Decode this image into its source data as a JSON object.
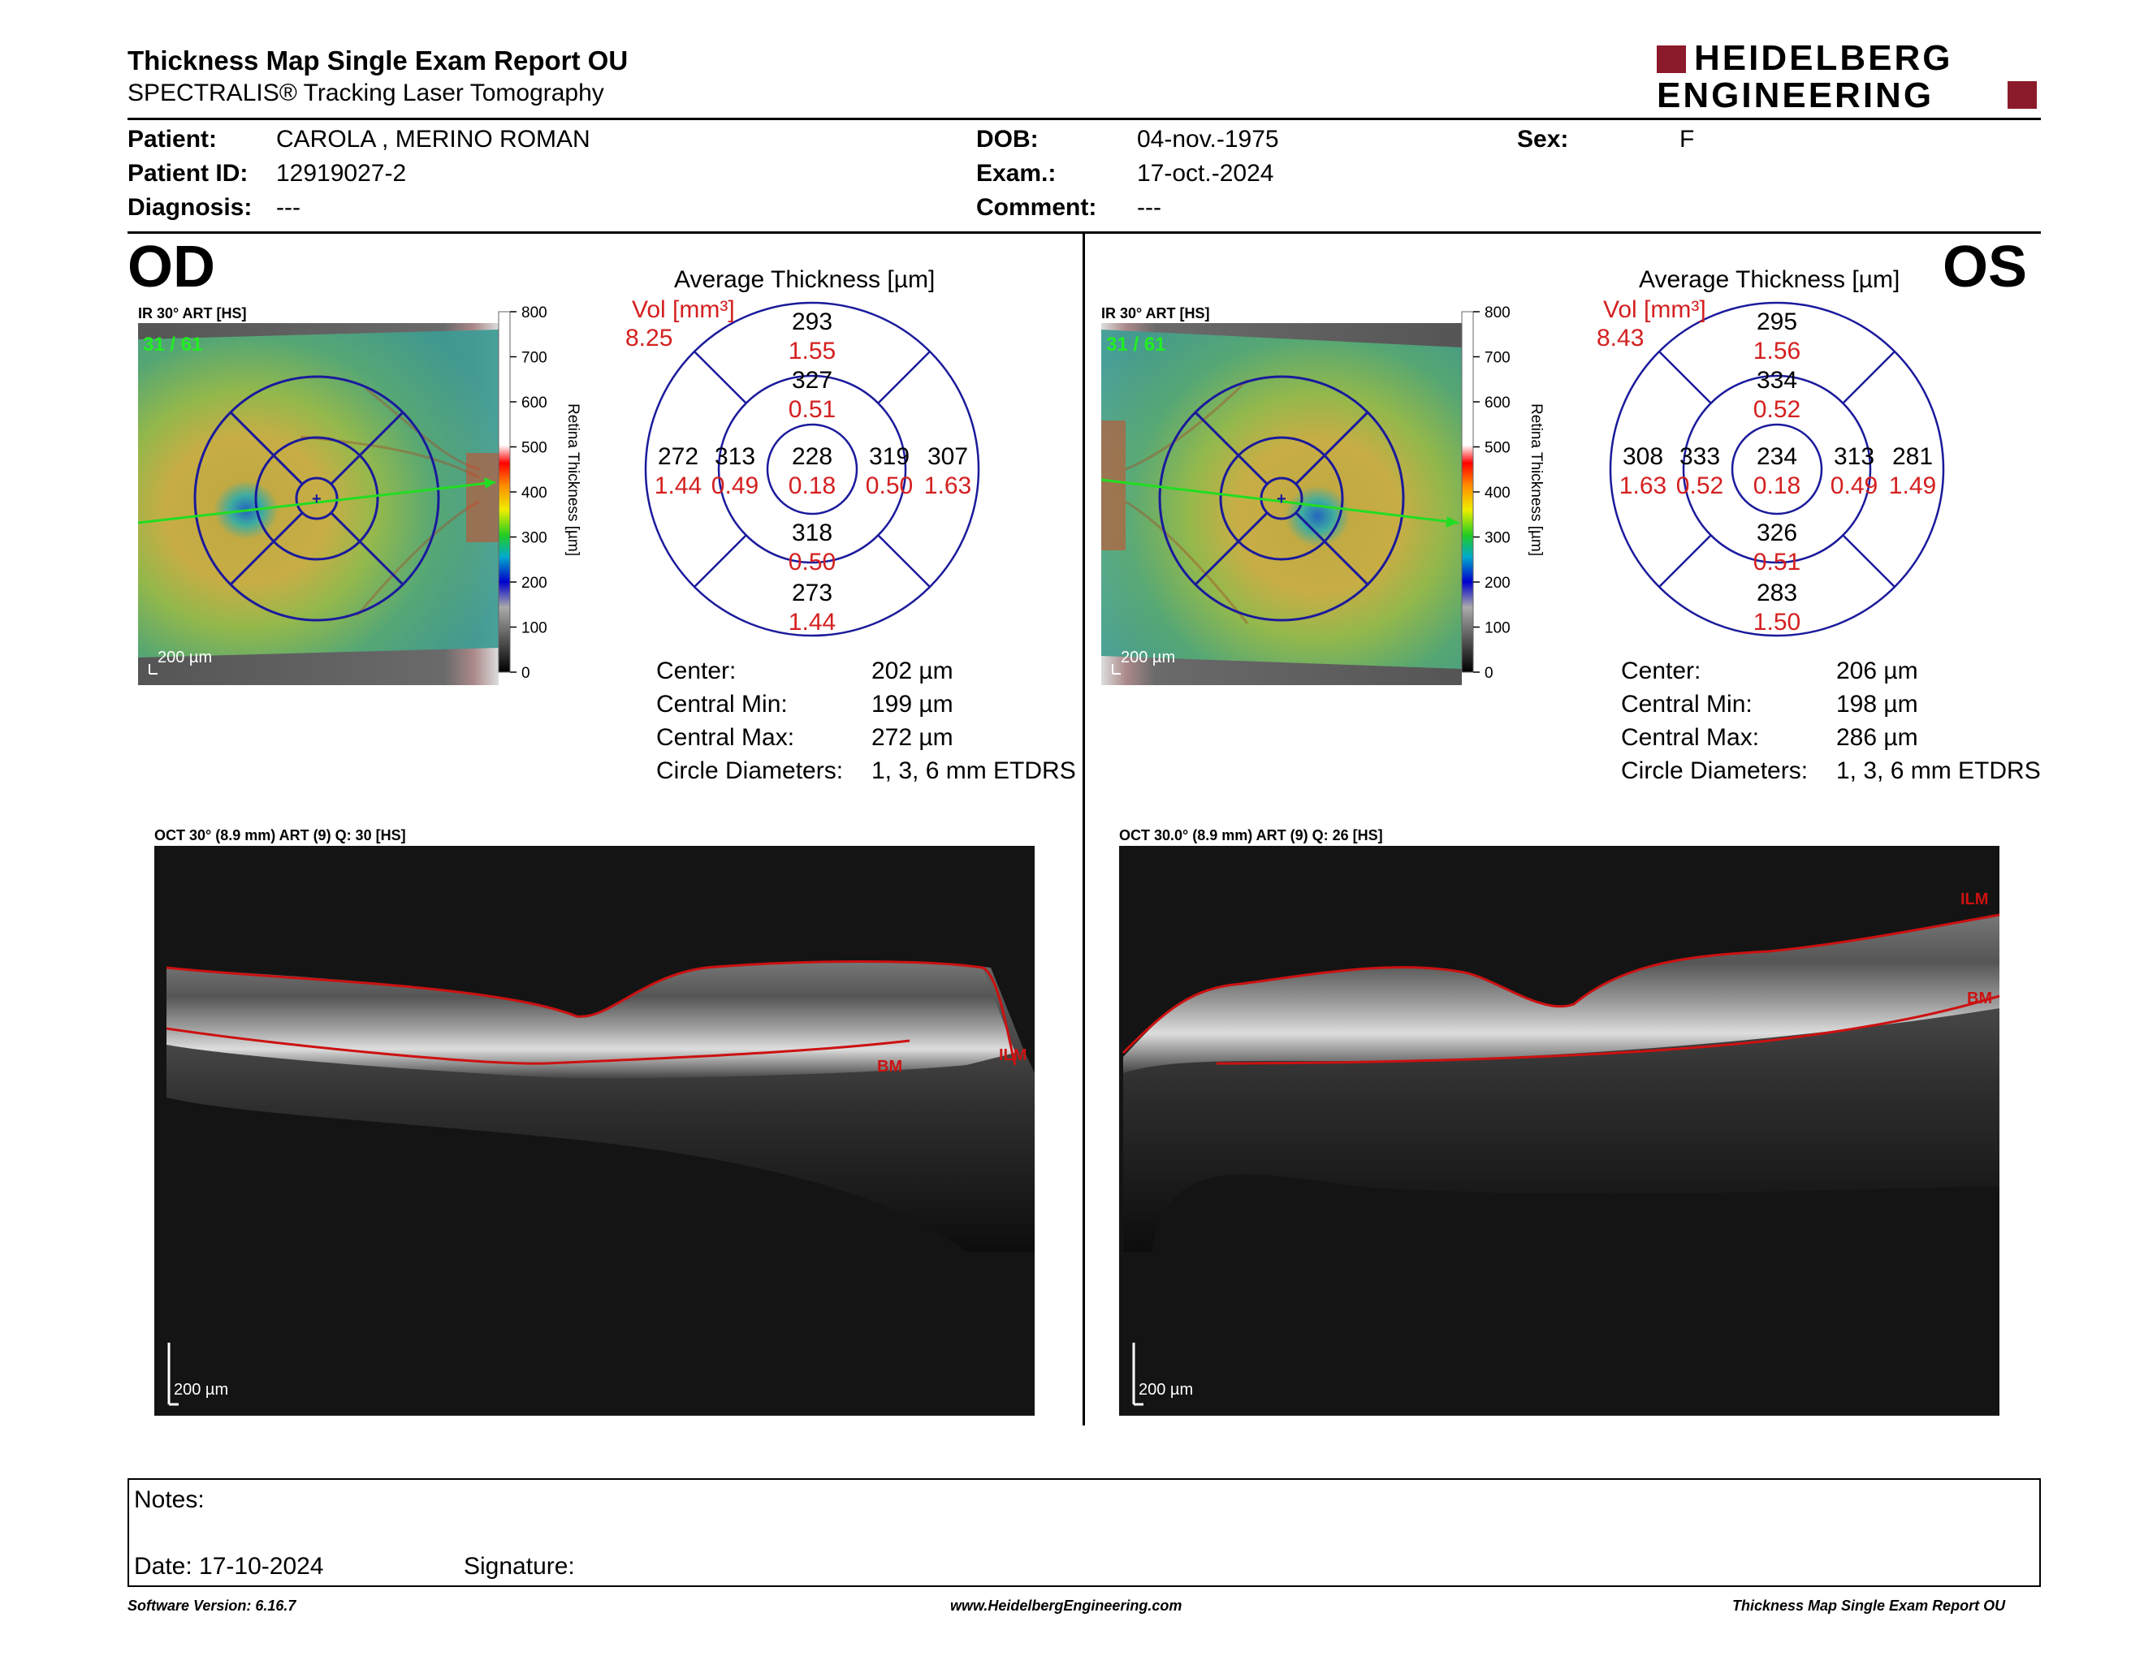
{
  "header": {
    "title": "Thickness Map Single Exam Report OU",
    "subtitle": "SPECTRALIS® Tracking Laser Tomography",
    "logo_line1": "HEIDELBERG",
    "logo_line2": "ENGINEERING",
    "brand_color": "#8b1a2b"
  },
  "patient": {
    "patient_label": "Patient:",
    "patient_value": "CAROLA , MERINO ROMAN",
    "id_label": "Patient ID:",
    "id_value": "12919027-2",
    "diagnosis_label": "Diagnosis:",
    "diagnosis_value": "---",
    "dob_label": "DOB:",
    "dob_value": "04-nov.-1975",
    "exam_label": "Exam.:",
    "exam_value": "17-oct.-2024",
    "comment_label": "Comment:",
    "comment_value": "---",
    "sex_label": "Sex:",
    "sex_value": "F"
  },
  "od": {
    "eye": "OD",
    "ir_caption": "IR 30° ART [HS]",
    "frame_label": "31 / 61",
    "scale_label": "200 µm",
    "colorbar_ticks": [
      "800",
      "700",
      "600",
      "500",
      "400",
      "300",
      "200",
      "100",
      "0"
    ],
    "colorbar_title": "Retina Thickness [µm]",
    "avg_title": "Average Thickness [µm]",
    "vol_label": "Vol [mm³]",
    "vol_value": "8.25",
    "sectors": {
      "outer_sup": {
        "t": "293",
        "v": "1.55"
      },
      "inner_sup": {
        "t": "327",
        "v": "0.51"
      },
      "outer_temp": {
        "t": "272",
        "v": "1.44"
      },
      "inner_temp": {
        "t": "313",
        "v": "0.49"
      },
      "center": {
        "t": "228",
        "v": "0.18"
      },
      "inner_nas": {
        "t": "319",
        "v": "0.50"
      },
      "outer_nas": {
        "t": "307",
        "v": "1.63"
      },
      "inner_inf": {
        "t": "318",
        "v": "0.50"
      },
      "outer_inf": {
        "t": "273",
        "v": "1.44"
      }
    },
    "stats": [
      {
        "label": "Center:",
        "value": "202 µm"
      },
      {
        "label": "Central Min:",
        "value": "199 µm"
      },
      {
        "label": "Central Max:",
        "value": "272 µm"
      },
      {
        "label": "Circle Diameters:",
        "value": "1, 3, 6 mm ETDRS"
      }
    ],
    "oct_caption": "OCT 30° (8.9 mm) ART (9) Q: 30 [HS]",
    "oct_scale": "200 µm",
    "ilm_label": "ILM",
    "bm_label": "BM"
  },
  "os": {
    "eye": "OS",
    "ir_caption": "IR 30° ART [HS]",
    "frame_label": "31 / 61",
    "scale_label": "200 µm",
    "colorbar_ticks": [
      "800",
      "700",
      "600",
      "500",
      "400",
      "300",
      "200",
      "100",
      "0"
    ],
    "colorbar_title": "Retina Thickness [µm]",
    "avg_title": "Average Thickness [µm]",
    "vol_label": "Vol [mm³]",
    "vol_value": "8.43",
    "sectors": {
      "outer_sup": {
        "t": "295",
        "v": "1.56"
      },
      "inner_sup": {
        "t": "334",
        "v": "0.52"
      },
      "outer_temp": {
        "t": "281",
        "v": "1.49"
      },
      "inner_temp": {
        "t": "313",
        "v": "0.49"
      },
      "center": {
        "t": "234",
        "v": "0.18"
      },
      "inner_nas": {
        "t": "333",
        "v": "0.52"
      },
      "outer_nas": {
        "t": "308",
        "v": "1.63"
      },
      "inner_inf": {
        "t": "326",
        "v": "0.51"
      },
      "outer_inf": {
        "t": "283",
        "v": "1.50"
      }
    },
    "stats": [
      {
        "label": "Center:",
        "value": "206 µm"
      },
      {
        "label": "Central Min:",
        "value": "198 µm"
      },
      {
        "label": "Central Max:",
        "value": "286 µm"
      },
      {
        "label": "Circle Diameters:",
        "value": "1, 3, 6 mm ETDRS"
      }
    ],
    "oct_caption": "OCT 30.0° (8.9 mm) ART (9) Q: 26 [HS]",
    "oct_scale": "200 µm",
    "ilm_label": "ILM",
    "bm_label": "BM"
  },
  "notes": {
    "notes_label": "Notes:",
    "date_label": "Date: 17-10-2024",
    "signature_label": "Signature:"
  },
  "footer": {
    "software": "Software Version: 6.16.7",
    "website": "www.HeidelbergEngineering.com",
    "report_name": "Thickness Map Single Exam Report OU"
  },
  "colors": {
    "grid_blue": "#1a1a9c",
    "value_red": "#d42020",
    "scan_green": "#22dd22",
    "layer_red": "#cc1111"
  }
}
